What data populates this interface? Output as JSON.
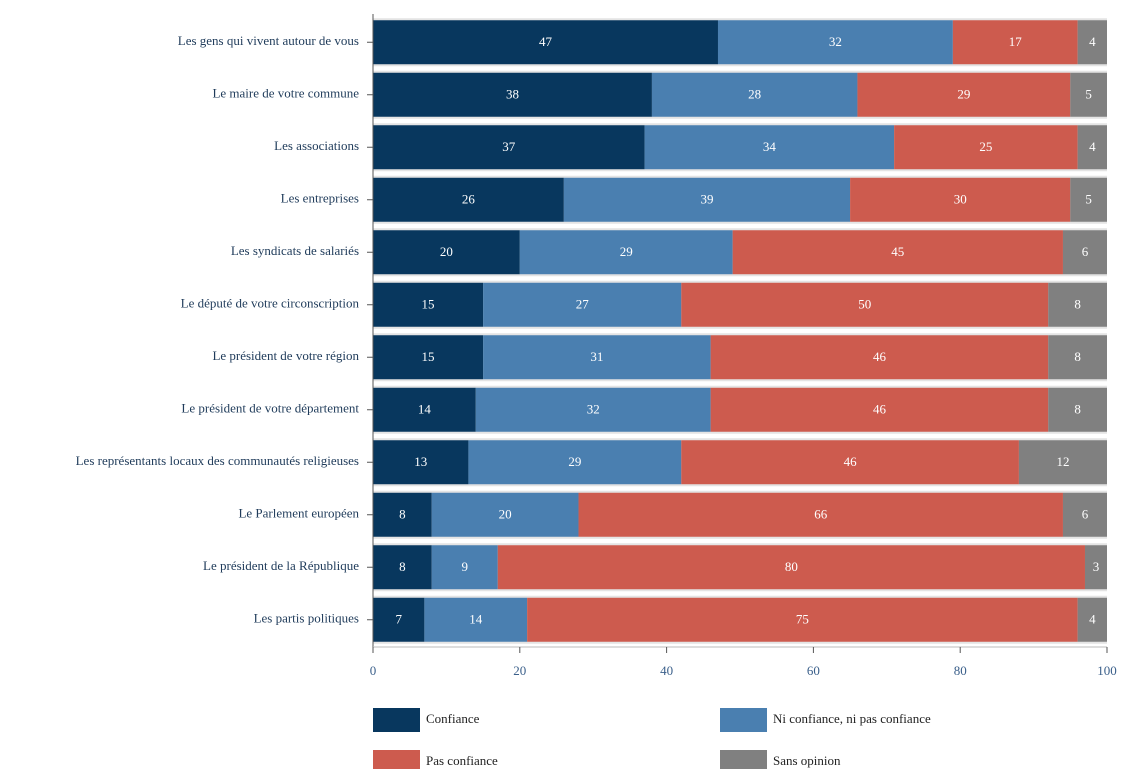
{
  "chart_data": {
    "type": "stacked-bar-horizontal",
    "categories": [
      "Les gens qui vivent autour de vous",
      "Le maire de votre commune",
      "Les associations",
      "Les entreprises",
      "Les syndicats de salariés",
      "Le député de votre circonscription",
      "Le président de votre région",
      "Le président de votre département",
      "Les représentants locaux des communautés religieuses",
      "Le Parlement européen",
      "Le président de la République",
      "Les partis politiques"
    ],
    "series": [
      {
        "name": "Confiance",
        "color": "#08375e",
        "values": [
          47,
          38,
          37,
          26,
          20,
          15,
          15,
          14,
          13,
          8,
          8,
          7
        ]
      },
      {
        "name": "Ni confiance, ni pas confiance",
        "color": "#4a7fb0",
        "values": [
          32,
          28,
          34,
          39,
          29,
          27,
          31,
          32,
          29,
          20,
          9,
          14
        ]
      },
      {
        "name": "Pas confiance",
        "color": "#cd5b4e",
        "values": [
          17,
          29,
          25,
          30,
          45,
          50,
          46,
          46,
          46,
          66,
          80,
          75
        ]
      },
      {
        "name": "Sans opinion",
        "color": "#808080",
        "values": [
          4,
          5,
          4,
          5,
          6,
          8,
          8,
          8,
          12,
          6,
          3,
          4
        ]
      }
    ],
    "xlim": [
      0,
      100
    ],
    "xticks": [
      0,
      20,
      40,
      60,
      80,
      100
    ]
  }
}
